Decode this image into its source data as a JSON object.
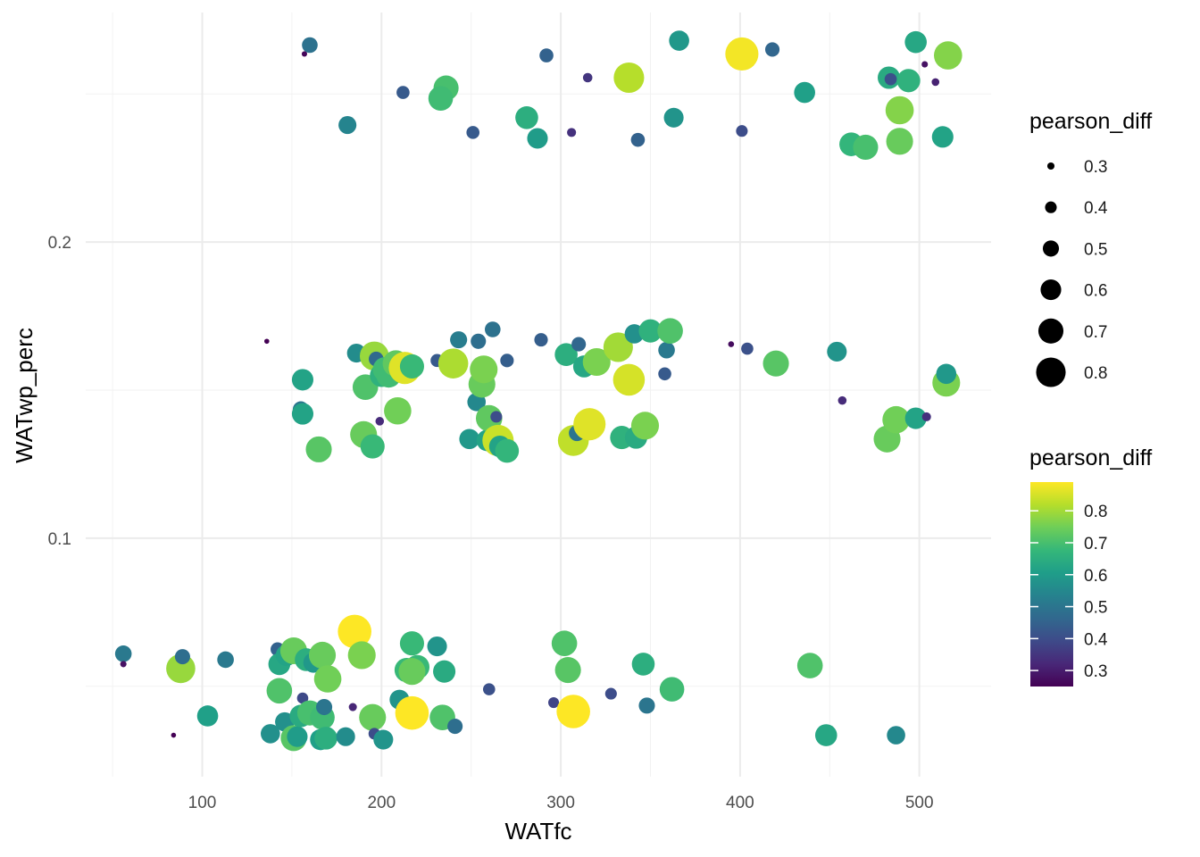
{
  "chart_data": {
    "type": "scatter",
    "xlabel": "WATfc",
    "ylabel": "WATwp_perc",
    "xlim": [
      35,
      540
    ],
    "ylim": [
      0.0195,
      0.2775
    ],
    "x_ticks": [
      "100",
      "200",
      "300",
      "400",
      "500"
    ],
    "y_ticks": [
      "0.1",
      "0.2"
    ],
    "grid": true,
    "legend_size": {
      "title": "pearson_diff",
      "labels": [
        "0.3",
        "0.4",
        "0.5",
        "0.6",
        "0.7",
        "0.8"
      ],
      "values": [
        0.3,
        0.4,
        0.5,
        0.6,
        0.7,
        0.8
      ]
    },
    "legend_color": {
      "title": "pearson_diff",
      "labels": [
        "0.8",
        "0.7",
        "0.6",
        "0.5",
        "0.4",
        "0.3"
      ],
      "values": [
        0.8,
        0.7,
        0.6,
        0.5,
        0.4,
        0.3
      ],
      "range": [
        0.25,
        0.89
      ],
      "palette": [
        "#440154",
        "#482878",
        "#3e4a89",
        "#31688e",
        "#26828e",
        "#1f9e89",
        "#35b779",
        "#6ece58",
        "#b5de2b",
        "#fde725"
      ]
    },
    "points": [
      [
        160,
        0.2665,
        0.49
      ],
      [
        157,
        0.2635,
        0.26
      ],
      [
        212,
        0.2505,
        0.43
      ],
      [
        236,
        0.252,
        0.7
      ],
      [
        233,
        0.2485,
        0.69
      ],
      [
        181,
        0.2395,
        0.54
      ],
      [
        251,
        0.237,
        0.43
      ],
      [
        281,
        0.242,
        0.65
      ],
      [
        287,
        0.235,
        0.6
      ],
      [
        292,
        0.263,
        0.45
      ],
      [
        306,
        0.237,
        0.34
      ],
      [
        315,
        0.2555,
        0.35
      ],
      [
        338,
        0.2555,
        0.82
      ],
      [
        343,
        0.2345,
        0.45
      ],
      [
        363,
        0.242,
        0.58
      ],
      [
        366,
        0.268,
        0.59
      ],
      [
        401,
        0.2375,
        0.4
      ],
      [
        401,
        0.2635,
        0.88
      ],
      [
        418,
        0.265,
        0.46
      ],
      [
        436,
        0.2505,
        0.61
      ],
      [
        462,
        0.233,
        0.67
      ],
      [
        470,
        0.232,
        0.7
      ],
      [
        483,
        0.2555,
        0.64
      ],
      [
        484,
        0.255,
        0.41
      ],
      [
        489,
        0.2445,
        0.77
      ],
      [
        489,
        0.234,
        0.74
      ],
      [
        494,
        0.2545,
        0.66
      ],
      [
        498,
        0.2675,
        0.63
      ],
      [
        503,
        0.26,
        0.28
      ],
      [
        509,
        0.254,
        0.31
      ],
      [
        513,
        0.2355,
        0.62
      ],
      [
        516,
        0.263,
        0.77
      ],
      [
        136,
        0.1665,
        0.25
      ],
      [
        156,
        0.1535,
        0.62
      ],
      [
        155,
        0.1435,
        0.5
      ],
      [
        156,
        0.142,
        0.62
      ],
      [
        165,
        0.13,
        0.72
      ],
      [
        186,
        0.1625,
        0.56
      ],
      [
        190,
        0.135,
        0.74
      ],
      [
        191,
        0.151,
        0.71
      ],
      [
        195,
        0.131,
        0.68
      ],
      [
        196,
        0.1615,
        0.79
      ],
      [
        197,
        0.1605,
        0.47
      ],
      [
        199,
        0.1395,
        0.33
      ],
      [
        200,
        0.155,
        0.66
      ],
      [
        202,
        0.157,
        0.69
      ],
      [
        204,
        0.155,
        0.69
      ],
      [
        208,
        0.159,
        0.73
      ],
      [
        209,
        0.143,
        0.75
      ],
      [
        213,
        0.1575,
        0.86
      ],
      [
        217,
        0.158,
        0.68
      ],
      [
        231,
        0.16,
        0.43
      ],
      [
        240,
        0.159,
        0.81
      ],
      [
        243,
        0.167,
        0.52
      ],
      [
        249,
        0.1335,
        0.59
      ],
      [
        253,
        0.146,
        0.55
      ],
      [
        254,
        0.1665,
        0.48
      ],
      [
        256,
        0.152,
        0.74
      ],
      [
        257,
        0.157,
        0.76
      ],
      [
        259,
        0.133,
        0.62
      ],
      [
        260,
        0.1405,
        0.73
      ],
      [
        262,
        0.1705,
        0.49
      ],
      [
        264,
        0.141,
        0.4
      ],
      [
        265,
        0.133,
        0.84
      ],
      [
        266,
        0.131,
        0.62
      ],
      [
        270,
        0.16,
        0.44
      ],
      [
        270,
        0.1295,
        0.67
      ],
      [
        289,
        0.167,
        0.44
      ],
      [
        303,
        0.162,
        0.65
      ],
      [
        307,
        0.133,
        0.83
      ],
      [
        309,
        0.1355,
        0.5
      ],
      [
        310,
        0.1655,
        0.46
      ],
      [
        313,
        0.158,
        0.63
      ],
      [
        320,
        0.1595,
        0.76
      ],
      [
        316,
        0.1385,
        0.86
      ],
      [
        332,
        0.1645,
        0.8
      ],
      [
        334,
        0.134,
        0.66
      ],
      [
        338,
        0.1535,
        0.85
      ],
      [
        341,
        0.169,
        0.57
      ],
      [
        342,
        0.134,
        0.64
      ],
      [
        347,
        0.138,
        0.76
      ],
      [
        350,
        0.17,
        0.66
      ],
      [
        358,
        0.1555,
        0.43
      ],
      [
        359,
        0.1635,
        0.51
      ],
      [
        361,
        0.17,
        0.71
      ],
      [
        395,
        0.1655,
        0.27
      ],
      [
        404,
        0.164,
        0.41
      ],
      [
        420,
        0.159,
        0.72
      ],
      [
        454,
        0.163,
        0.58
      ],
      [
        457,
        0.1465,
        0.33
      ],
      [
        482,
        0.1335,
        0.74
      ],
      [
        487,
        0.14,
        0.75
      ],
      [
        498,
        0.1405,
        0.62
      ],
      [
        504,
        0.141,
        0.34
      ],
      [
        515,
        0.1525,
        0.76
      ],
      [
        515,
        0.1555,
        0.59
      ],
      [
        56,
        0.061,
        0.51
      ],
      [
        56,
        0.0575,
        0.28
      ],
      [
        84,
        0.0335,
        0.25
      ],
      [
        88,
        0.056,
        0.79
      ],
      [
        89,
        0.06,
        0.48
      ],
      [
        103,
        0.04,
        0.61
      ],
      [
        113,
        0.059,
        0.51
      ],
      [
        138,
        0.034,
        0.57
      ],
      [
        142,
        0.0625,
        0.45
      ],
      [
        143,
        0.0575,
        0.63
      ],
      [
        143,
        0.0485,
        0.71
      ],
      [
        146,
        0.038,
        0.57
      ],
      [
        147,
        0.0605,
        0.62
      ],
      [
        151,
        0.062,
        0.74
      ],
      [
        151,
        0.0325,
        0.72
      ],
      [
        153,
        0.033,
        0.6
      ],
      [
        155,
        0.04,
        0.64
      ],
      [
        156,
        0.046,
        0.39
      ],
      [
        158,
        0.059,
        0.65
      ],
      [
        160,
        0.041,
        0.7
      ],
      [
        162,
        0.058,
        0.59
      ],
      [
        166,
        0.032,
        0.61
      ],
      [
        167,
        0.0605,
        0.74
      ],
      [
        167,
        0.0395,
        0.69
      ],
      [
        168,
        0.043,
        0.5
      ],
      [
        169,
        0.0325,
        0.65
      ],
      [
        170,
        0.0525,
        0.75
      ],
      [
        180,
        0.033,
        0.56
      ],
      [
        184,
        0.043,
        0.32
      ],
      [
        185,
        0.0685,
        0.89
      ],
      [
        189,
        0.0605,
        0.76
      ],
      [
        195,
        0.0395,
        0.74
      ],
      [
        196,
        0.034,
        0.4
      ],
      [
        201,
        0.032,
        0.58
      ],
      [
        210,
        0.0455,
        0.58
      ],
      [
        214,
        0.0555,
        0.68
      ],
      [
        217,
        0.041,
        0.89
      ],
      [
        217,
        0.0645,
        0.68
      ],
      [
        220,
        0.0565,
        0.68
      ],
      [
        217,
        0.055,
        0.74
      ],
      [
        231,
        0.0635,
        0.58
      ],
      [
        234,
        0.0395,
        0.71
      ],
      [
        235,
        0.055,
        0.64
      ],
      [
        241,
        0.0365,
        0.48
      ],
      [
        260,
        0.049,
        0.41
      ],
      [
        296,
        0.0445,
        0.38
      ],
      [
        302,
        0.0645,
        0.71
      ],
      [
        304,
        0.0555,
        0.72
      ],
      [
        307,
        0.0415,
        0.89
      ],
      [
        328,
        0.0475,
        0.4
      ],
      [
        346,
        0.0575,
        0.65
      ],
      [
        348,
        0.0435,
        0.5
      ],
      [
        362,
        0.049,
        0.69
      ],
      [
        439,
        0.057,
        0.71
      ],
      [
        448,
        0.0335,
        0.61
      ],
      [
        448,
        0.0335,
        0.63
      ],
      [
        487,
        0.0335,
        0.55
      ]
    ]
  }
}
